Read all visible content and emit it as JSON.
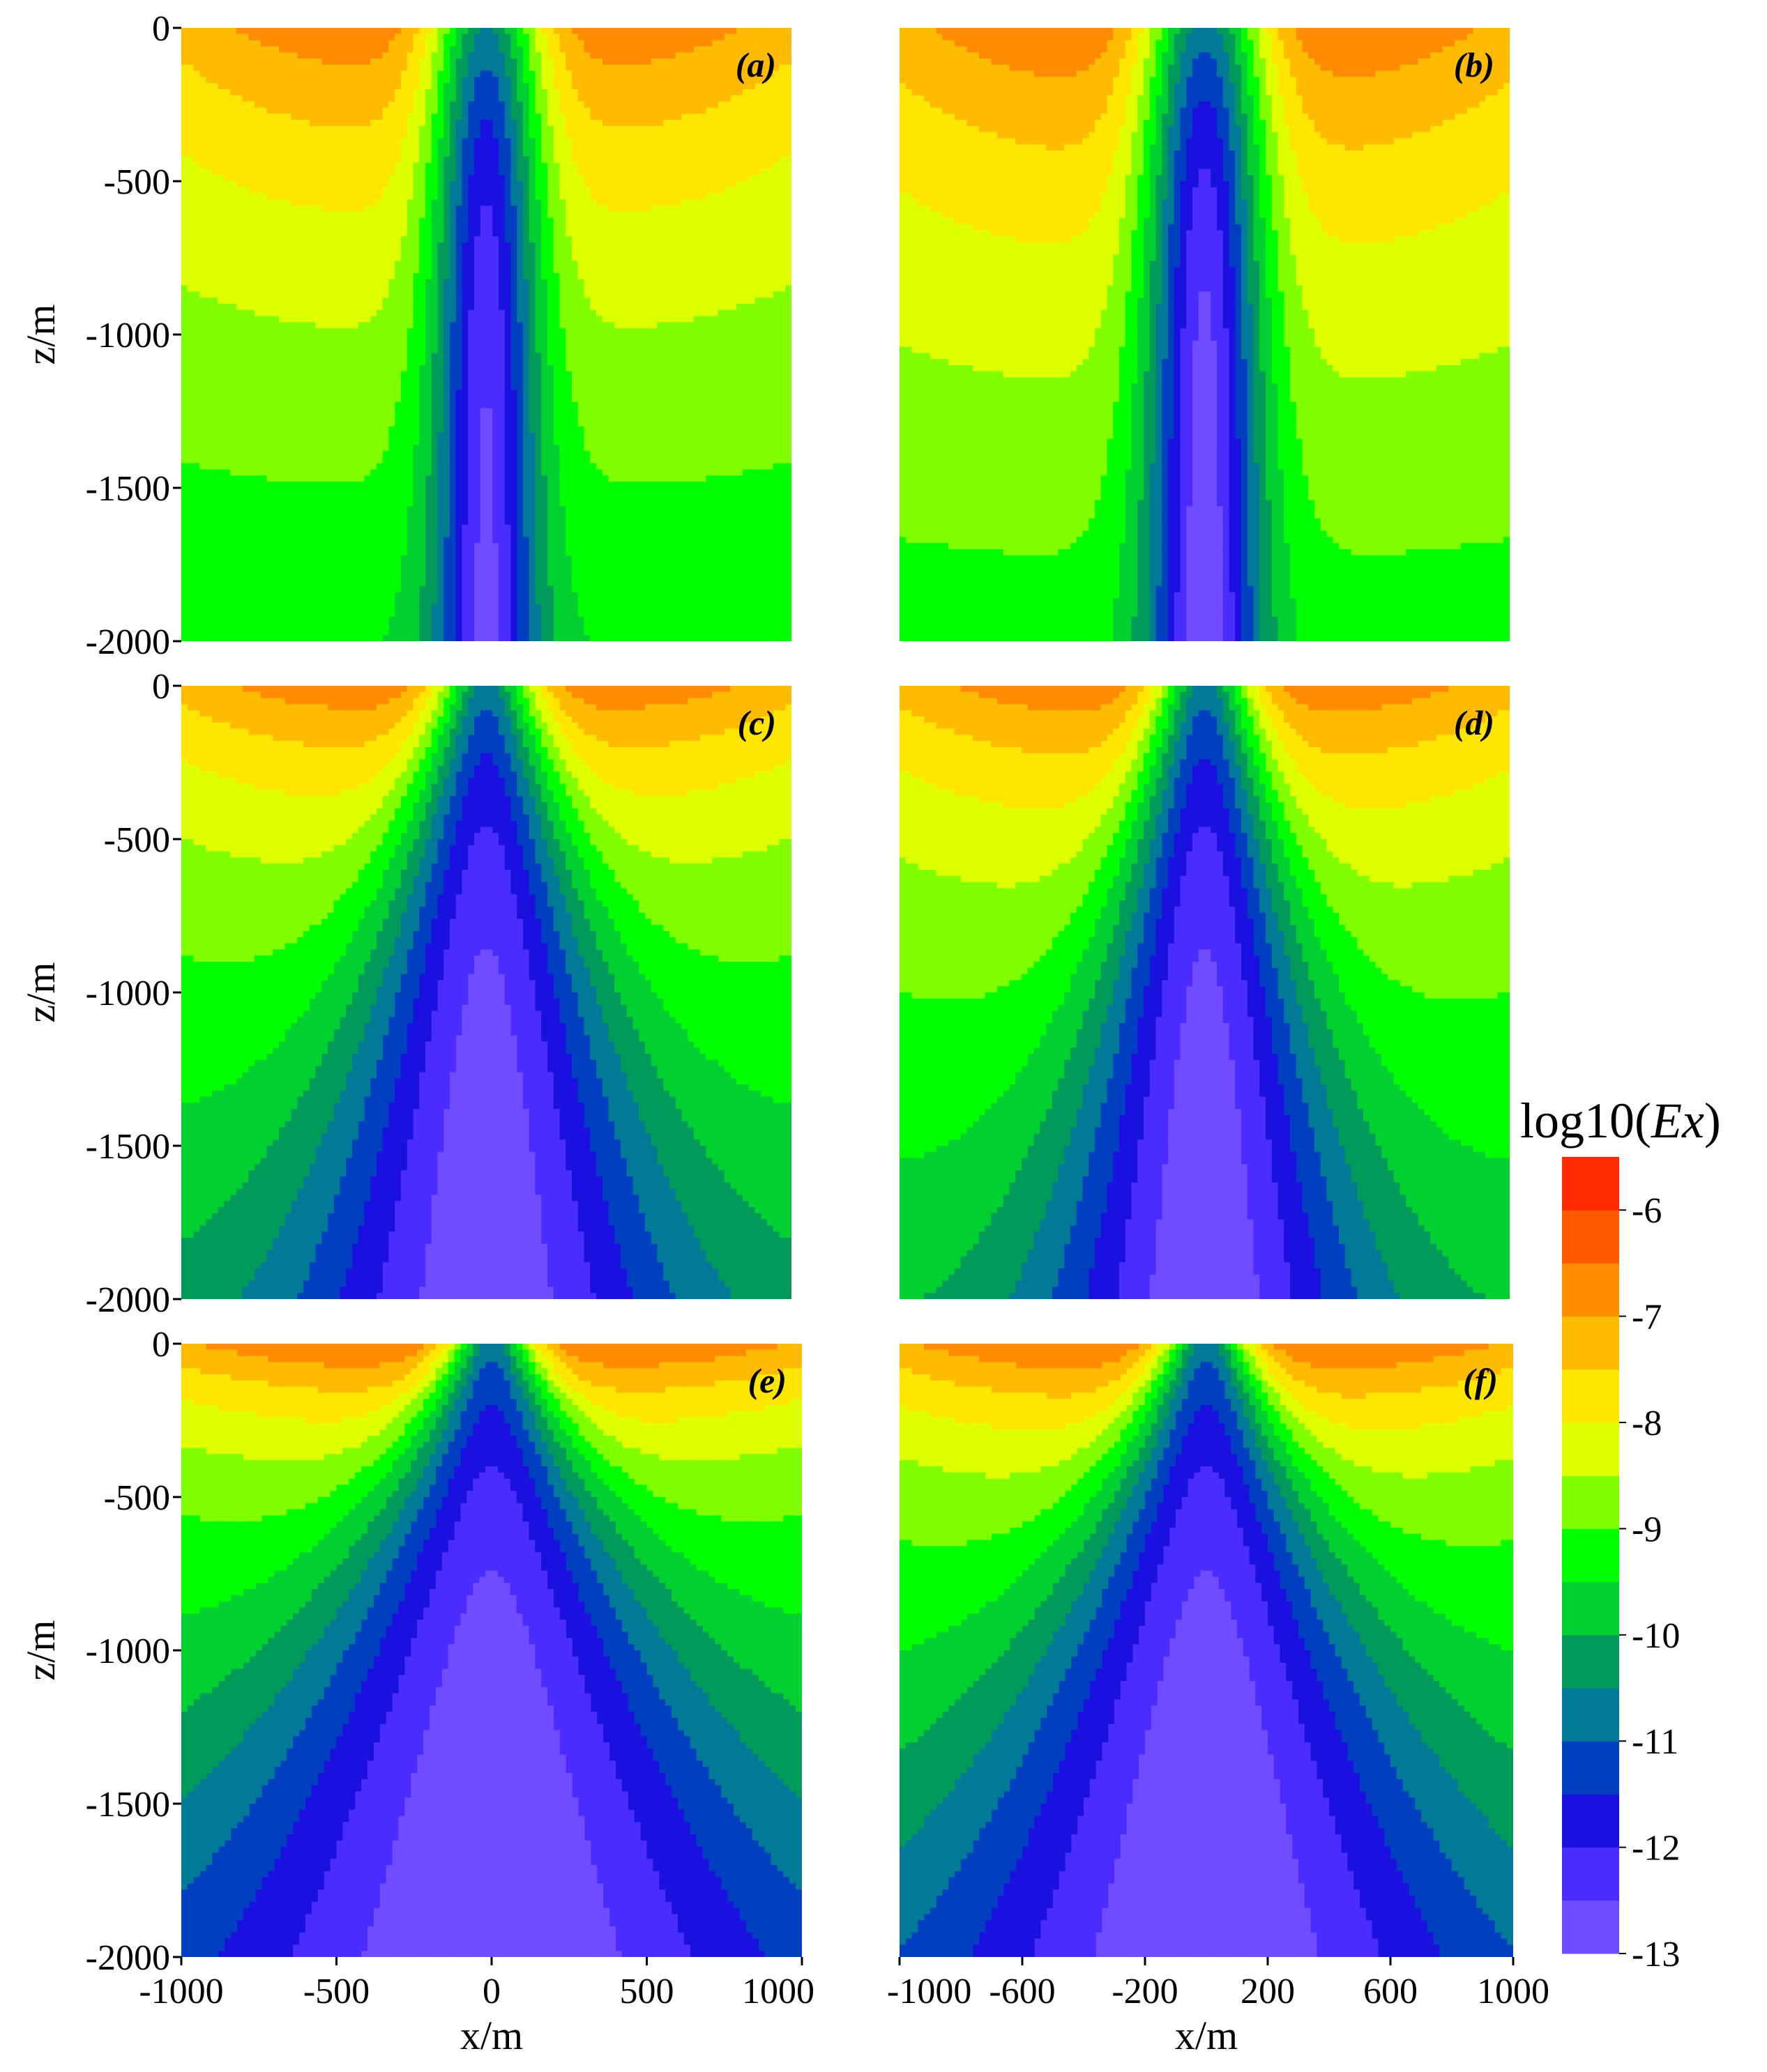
{
  "chart_data": {
    "type": "heatmap",
    "subtype": "filled-contour",
    "panels": [
      {
        "label": "(a)",
        "xlim": [
          -1000,
          1000
        ],
        "ylim": [
          -2000,
          0
        ],
        "ylabel": "z/m",
        "yticks": [
          "0",
          "-500",
          "-1000",
          "-1500",
          "-2000"
        ],
        "params": {
          "wH": 180,
          "wLow": 130,
          "spread": 0.0,
          "topMax": -6.6,
          "decay": 0.0016,
          "baseline": -8.6,
          "deepMin": -12.7,
          "center": 0
        }
      },
      {
        "label": "(b)",
        "xlim": [
          -1000,
          1000
        ],
        "ylim": [
          -2000,
          0
        ],
        "params": {
          "wH": 200,
          "wLow": 140,
          "spread": 0.0,
          "topMax": -6.5,
          "decay": 0.0016,
          "baseline": -8.4,
          "deepMin": -12.9,
          "center": 0
        }
      },
      {
        "label": "(c)",
        "xlim": [
          -1000,
          1000
        ],
        "ylim": [
          -2000,
          0
        ],
        "ylabel": "z/m",
        "yticks": [
          "0",
          "-500",
          "-1000",
          "-1500",
          "-2000"
        ],
        "params": {
          "wH": 150,
          "wLow": 110,
          "spread": 0.25,
          "topMax": -6.6,
          "decay": 0.0022,
          "baseline": -8.9,
          "deepMin": -12.9,
          "center": 0
        }
      },
      {
        "label": "(d)",
        "xlim": [
          -1000,
          1000
        ],
        "ylim": [
          -2000,
          0
        ],
        "params": {
          "wH": 150,
          "wLow": 110,
          "spread": 0.2,
          "topMax": -6.6,
          "decay": 0.0021,
          "baseline": -8.8,
          "deepMin": -12.9,
          "center": 0
        }
      },
      {
        "label": "(e)",
        "xlim": [
          -1000,
          1000
        ],
        "ylim": [
          -2000,
          0
        ],
        "ylabel": "z/m",
        "xlabel": "x/m",
        "yticks": [
          "0",
          "-500",
          "-1000",
          "-1500",
          "-2000"
        ],
        "xticks": [
          -1000,
          -500,
          0,
          500,
          1000
        ],
        "xtick_labels": [
          "-1000",
          "-500",
          "0",
          "500",
          "1000"
        ],
        "params": {
          "wH": 120,
          "wLow": 100,
          "spread": 0.45,
          "topMax": -6.4,
          "decay": 0.003,
          "baseline": -9.2,
          "deepMin": -13.0,
          "center": 0
        }
      },
      {
        "label": "(f)",
        "xlim": [
          -1000,
          1000
        ],
        "ylim": [
          -2000,
          0
        ],
        "xlabel": "x/m",
        "xticks": [
          -1000,
          -600,
          -200,
          200,
          600,
          1000
        ],
        "xtick_labels": [
          "-1000",
          "-600",
          "-200",
          "200",
          "600",
          "1000"
        ],
        "params": {
          "wH": 130,
          "wLow": 100,
          "spread": 0.4,
          "topMax": -6.4,
          "decay": 0.0028,
          "baseline": -9.1,
          "deepMin": -13.0,
          "center": 0
        }
      }
    ],
    "colorbar": {
      "title_prefix": "log10(",
      "title_var": "Ex",
      "title_suffix": ")",
      "range": [
        -13,
        -5.5
      ],
      "ticks": [
        -6,
        -7,
        -8,
        -9,
        -10,
        -11,
        -12,
        -13
      ],
      "tick_labels": [
        "-6",
        "-7",
        "-8",
        "-9",
        "-10",
        "-11",
        "-12",
        "-13"
      ],
      "levels": [
        -13,
        -12.5,
        -12,
        -11.5,
        -11,
        -10.5,
        -10,
        -9.5,
        -9,
        -8.5,
        -8,
        -7.5,
        -7,
        -6.5,
        -6,
        -5.5
      ],
      "colors": [
        "#9966ff",
        "#6f4cff",
        "#4a2cff",
        "#1a10e0",
        "#0040c0",
        "#007a96",
        "#009a5a",
        "#00d030",
        "#00ff00",
        "#80ff00",
        "#ddff00",
        "#ffe600",
        "#ffbb00",
        "#ff8c00",
        "#ff5a00",
        "#ff2a00",
        "#ff0000"
      ]
    }
  }
}
